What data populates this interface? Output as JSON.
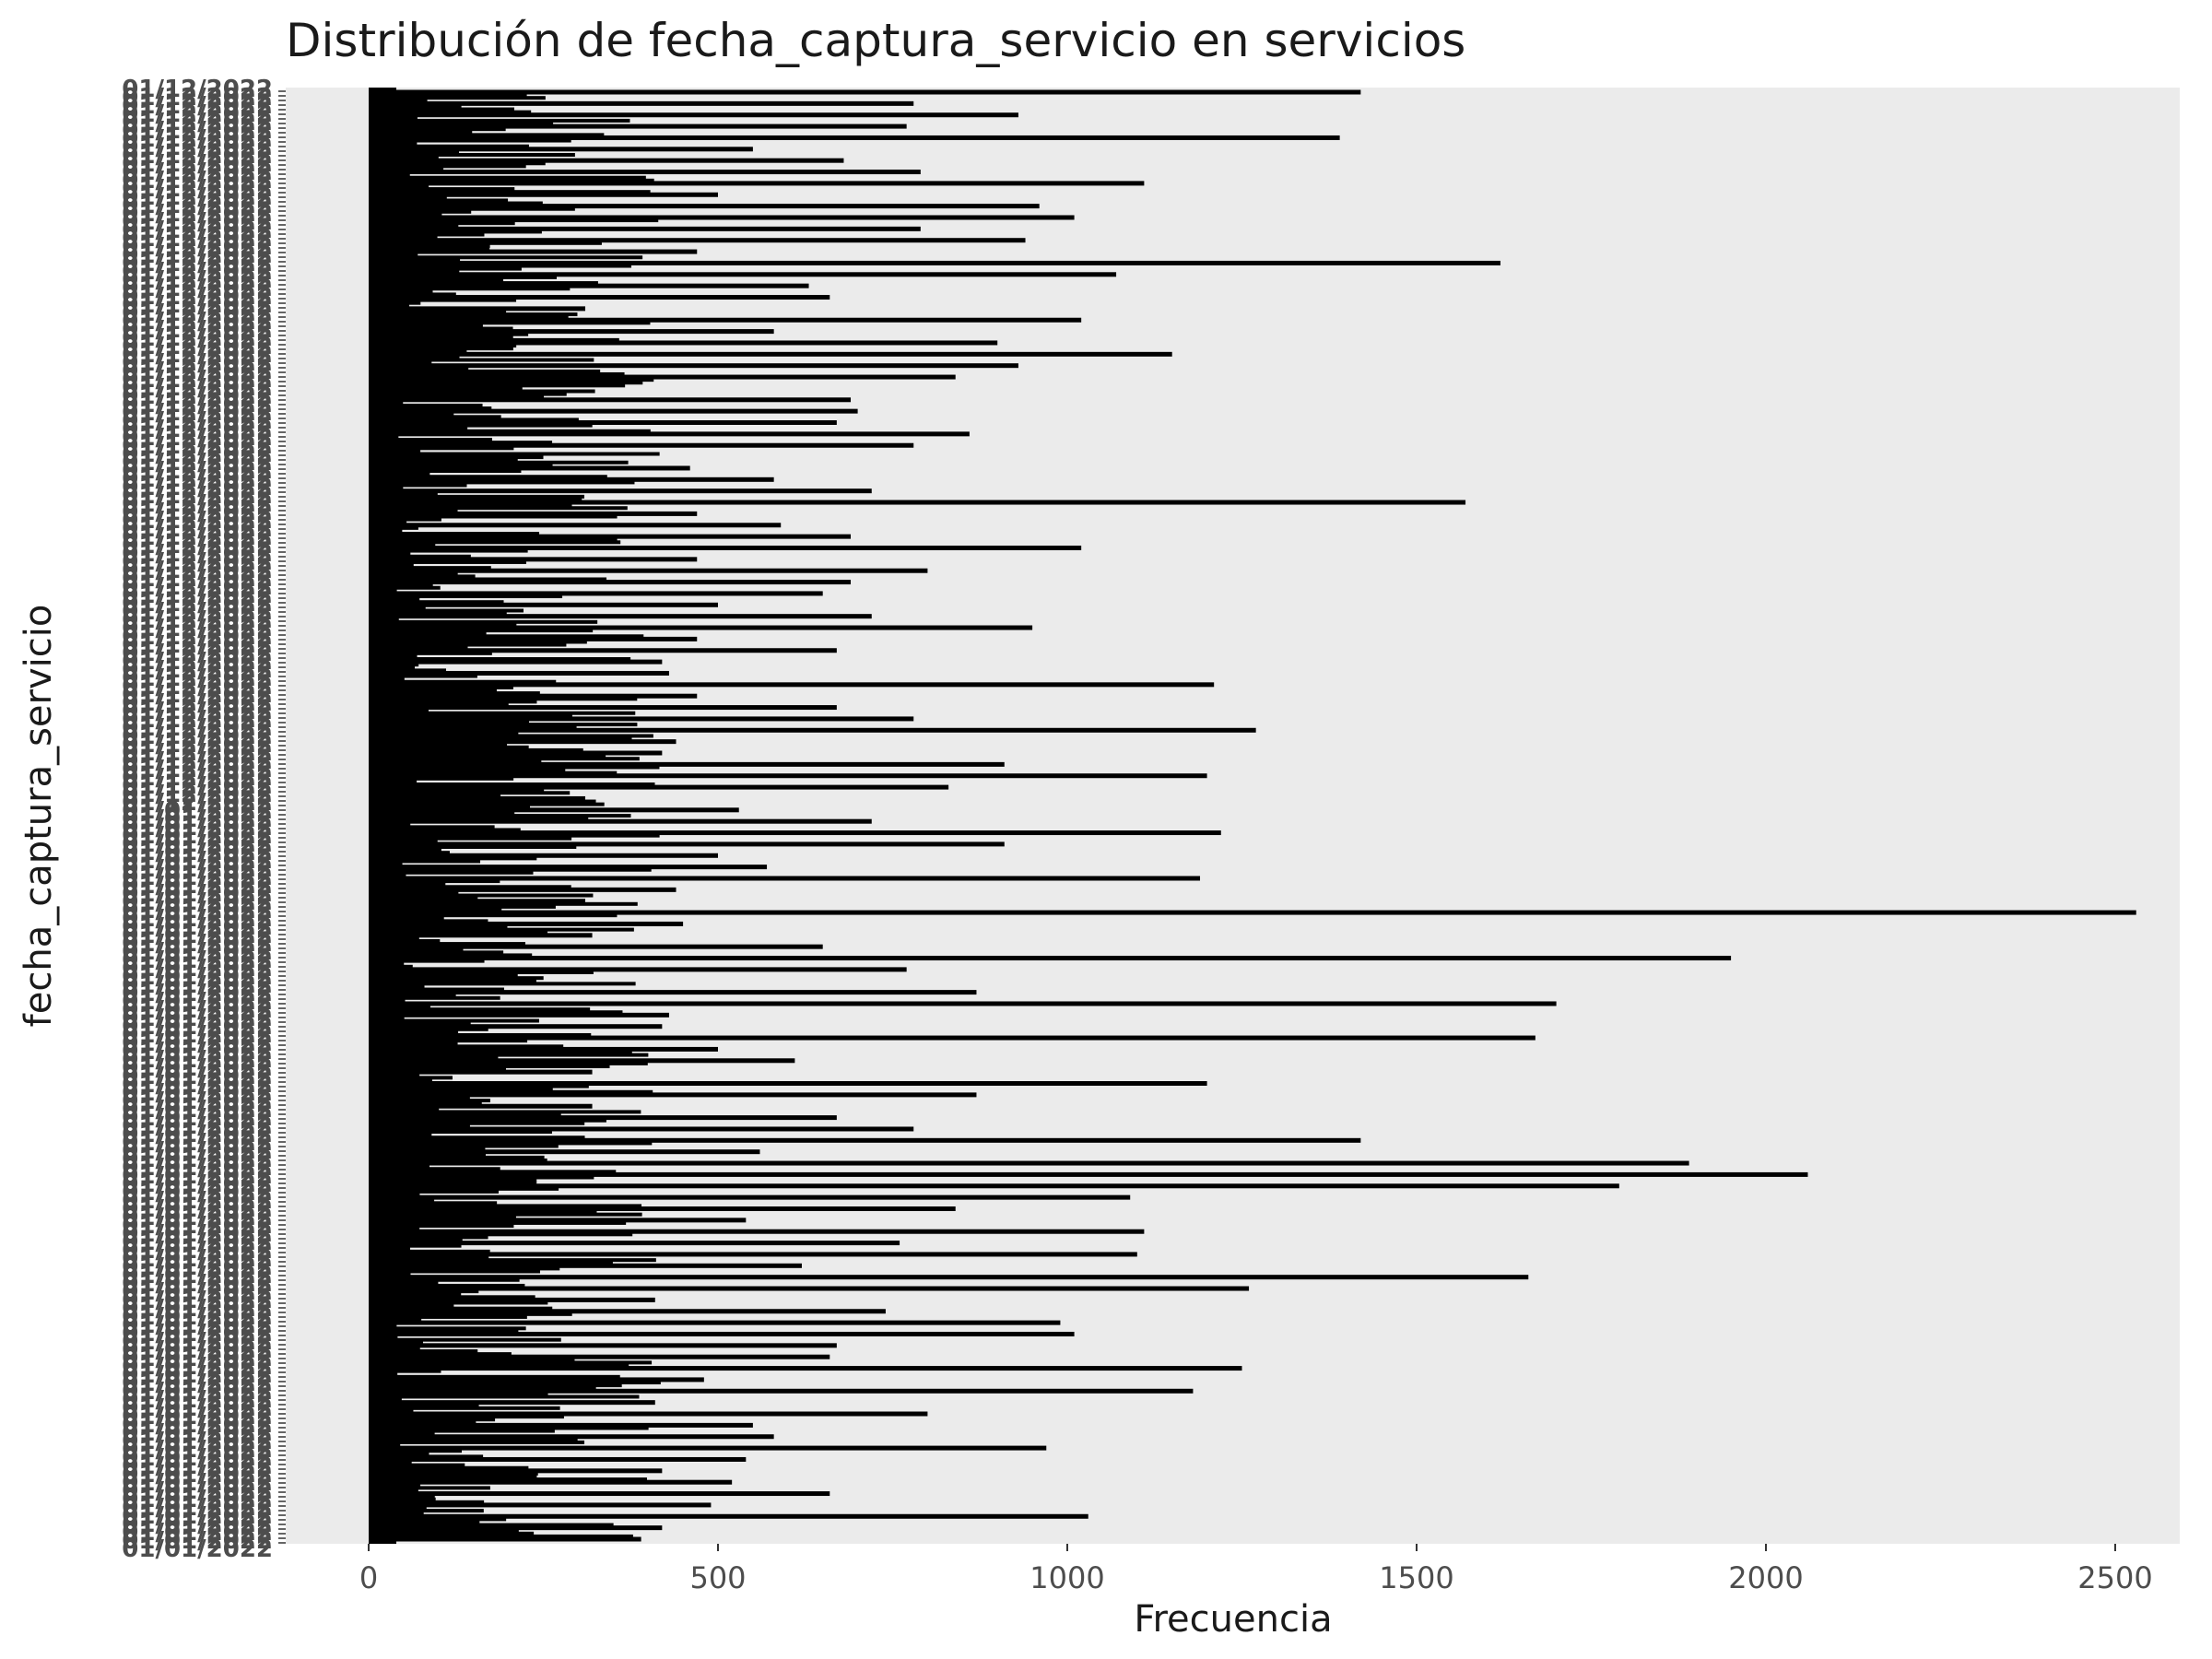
{
  "chart_data": {
    "type": "bar",
    "orientation": "horizontal",
    "title": "Distribución de fecha_captura_servicio en servicios",
    "xlabel": "Frecuencia",
    "ylabel": "fecha_captura_servicio",
    "xlim": [
      0,
      2600
    ],
    "x_ticks": [
      0,
      500,
      1000,
      1500,
      2000,
      2500
    ],
    "panel_background": "#ebebeb",
    "bar_color": "#000000",
    "grid": false,
    "legend": "none",
    "category_labels_visible": [
      "01/12/2022",
      "01/01/2022"
    ],
    "values": [
      1420,
      780,
      930,
      770,
      1390,
      550,
      680,
      790,
      1110,
      500,
      960,
      1010,
      790,
      940,
      470,
      1620,
      1070,
      630,
      660,
      310,
      1020,
      580,
      900,
      1150,
      930,
      840,
      220,
      690,
      700,
      670,
      860,
      780,
      250,
      460,
      580,
      720,
      1570,
      470,
      590,
      690,
      1020,
      470,
      800,
      690,
      650,
      500,
      720,
      950,
      470,
      670,
      420,
      430,
      1210,
      470,
      670,
      780,
      1270,
      440,
      420,
      910,
      1200,
      830,
      310,
      530,
      720,
      1220,
      910,
      500,
      570,
      1190,
      440,
      310,
      2530,
      450,
      320,
      650,
      1950,
      770,
      240,
      870,
      1700,
      430,
      420,
      1670,
      500,
      610,
      320,
      1200,
      870,
      320,
      670,
      780,
      1420,
      560,
      1890,
      2060,
      1790,
      1090,
      840,
      540,
      1110,
      760,
      1100,
      620,
      1660,
      1260,
      410,
      740,
      990,
      1010,
      670,
      660,
      1250,
      480,
      1180,
      410,
      800,
      550,
      580,
      970,
      540,
      420,
      520,
      660,
      490,
      1030,
      420,
      390
    ]
  }
}
